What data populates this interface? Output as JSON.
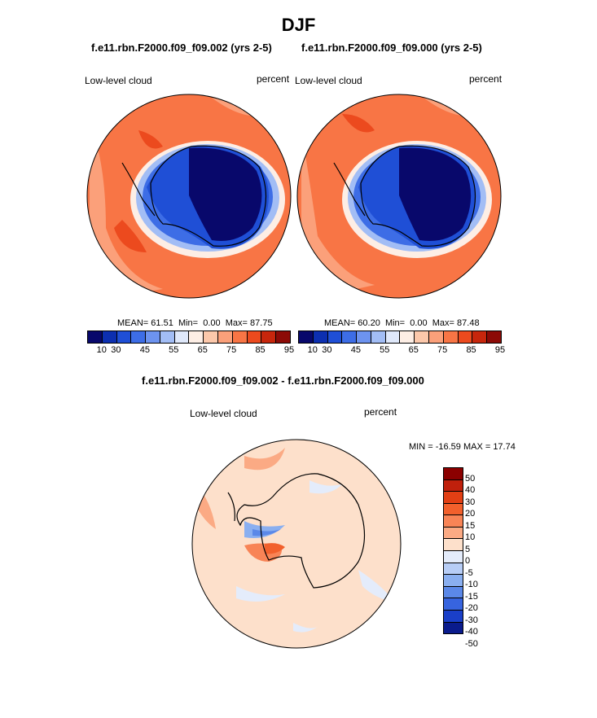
{
  "title": "DJF",
  "panels": [
    {
      "case": "f.e11.rbn.F2000.f09_f09.002 (yrs 2-5)",
      "variable": "Low-level cloud",
      "units": "percent",
      "stats": {
        "mean_label": "MEAN=",
        "mean": "61.51",
        "min_label": "Min=",
        "min": "0.00",
        "max_label": "Max=",
        "max": "87.75"
      }
    },
    {
      "case": "f.e11.rbn.F2000.f09_f09.000 (yrs 2-5)",
      "variable": "Low-level cloud",
      "units": "percent",
      "stats": {
        "mean_label": "MEAN=",
        "mean": "60.20",
        "min_label": "Min=",
        "min": "0.00",
        "max_label": "Max=",
        "max": "87.48"
      }
    }
  ],
  "diff_panel": {
    "title": "f.e11.rbn.F2000.f09_f09.002 - f.e11.rbn.F2000.f09_f09.000",
    "variable": "Low-level cloud",
    "units": "percent",
    "minmax": "MIN = -16.59 MAX =  17.74"
  },
  "colorbar_main": {
    "colors": [
      "#08086b",
      "#0c2fb0",
      "#1f4fd6",
      "#3d6de6",
      "#6d93ef",
      "#a2bdf5",
      "#dfe8fa",
      "#fdeee5",
      "#fcc8ab",
      "#fba07a",
      "#f87545",
      "#ec4a1e",
      "#c7260c",
      "#8c0a06"
    ],
    "labels": [
      "10",
      "30",
      "45",
      "55",
      "65",
      "75",
      "85",
      "95"
    ]
  },
  "colorbar_diff": {
    "colors": [
      "#8b0000",
      "#c0200c",
      "#e23f14",
      "#f2602c",
      "#f88456",
      "#fbaa84",
      "#fde0cb",
      "#e4ecfb",
      "#b7cdf6",
      "#8aaff0",
      "#5b88e8",
      "#3764df",
      "#1a3fc8",
      "#0a1b8c"
    ],
    "labels": [
      "50",
      "40",
      "30",
      "20",
      "15",
      "10",
      "5",
      "0",
      "-5",
      "-10",
      "-15",
      "-20",
      "-30",
      "-40",
      "-50"
    ]
  }
}
